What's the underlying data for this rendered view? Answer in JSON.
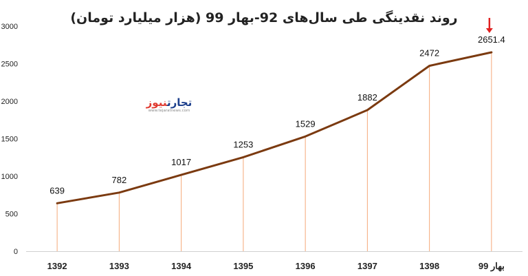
{
  "chart_data": {
    "type": "line",
    "title": "روند نقدینگی طی سال‌های 92-بهار 99 (هزار میلیارد تومان)",
    "categories": [
      "1392",
      "1393",
      "1394",
      "1395",
      "1396",
      "1397",
      "1398",
      "بهار 99"
    ],
    "values": [
      639,
      782,
      1017,
      1253,
      1529,
      1882,
      2472,
      2651.4
    ],
    "data_labels": [
      "639",
      "782",
      "1017",
      "1253",
      "1529",
      "1882",
      "2472",
      "2651.4"
    ],
    "y_ticks": [
      "0",
      "500",
      "1000",
      "1500",
      "2000",
      "2500",
      "3000"
    ],
    "ylim": [
      0,
      3000
    ],
    "grid": false,
    "line_color": "#7b3a10",
    "drop_line_color": "#f5a878",
    "highlight_point": 7,
    "highlight_marker_color": "#e02020"
  },
  "logo": {
    "name_part1": "تجارت",
    "name_part2": "نیوز",
    "url": "www.tejaratnews.com",
    "color1": "#1c3f8c",
    "color2": "#e03a30"
  }
}
